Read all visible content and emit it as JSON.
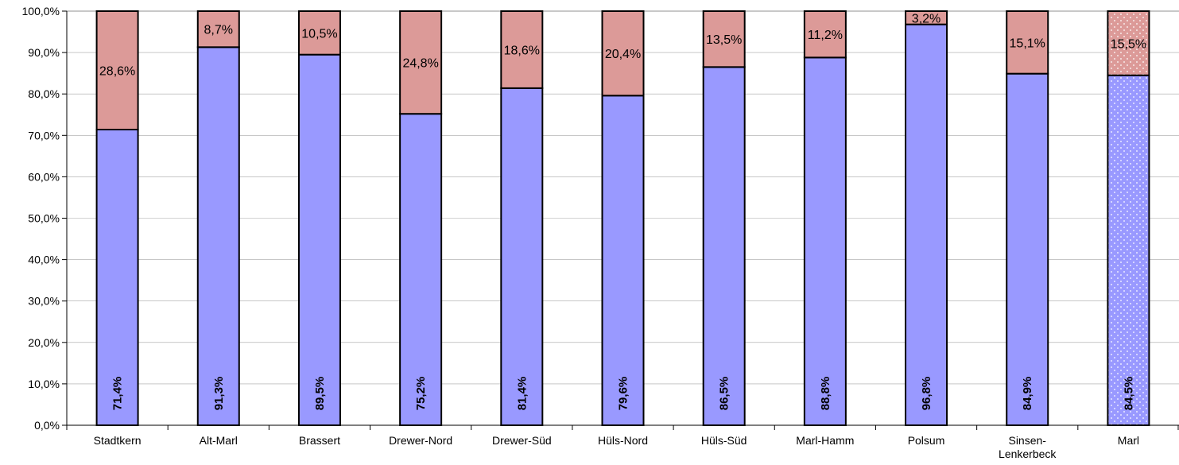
{
  "chart_data": {
    "type": "bar",
    "stacked": true,
    "categories": [
      [
        "Stadtkern"
      ],
      [
        "Alt-Marl"
      ],
      [
        "Brassert"
      ],
      [
        "Drewer-Nord"
      ],
      [
        "Drewer-Süd"
      ],
      [
        "Hüls-Nord"
      ],
      [
        "Hüls-Süd"
      ],
      [
        "Marl-Hamm"
      ],
      [
        "Polsum"
      ],
      [
        "Sinsen-",
        "Lenkerbeck"
      ],
      [
        "Marl"
      ]
    ],
    "series": [
      {
        "values": [
          71.4,
          91.3,
          89.5,
          75.2,
          81.4,
          79.6,
          86.5,
          88.8,
          96.8,
          84.9,
          84.5
        ],
        "labels": [
          "71,4%",
          "91,3%",
          "89,5%",
          "75,2%",
          "81,4%",
          "79,6%",
          "86,5%",
          "88,8%",
          "96,8%",
          "84,9%",
          "84,5%"
        ],
        "color": "#9999ff"
      },
      {
        "values": [
          28.6,
          8.7,
          10.5,
          24.8,
          18.6,
          20.4,
          13.5,
          11.2,
          3.2,
          15.1,
          15.5
        ],
        "labels": [
          "28,6%",
          "8,7%",
          "10,5%",
          "24,8%",
          "18,6%",
          "20,4%",
          "13,5%",
          "11,2%",
          "3,2%",
          "15,1%",
          "15,5%"
        ],
        "color": "#dc9a98"
      }
    ],
    "highlighted_category": "Marl",
    "ylim": [
      0,
      100
    ],
    "yticks": [
      0,
      10,
      20,
      30,
      40,
      50,
      60,
      70,
      80,
      90,
      100
    ],
    "ytick_labels": [
      "0,0%",
      "10,0%",
      "20,0%",
      "30,0%",
      "40,0%",
      "50,0%",
      "60,0%",
      "70,0%",
      "80,0%",
      "90,0%",
      "100,0%"
    ],
    "grid": true,
    "legend": "none",
    "title": "",
    "xlabel": "",
    "ylabel": ""
  }
}
